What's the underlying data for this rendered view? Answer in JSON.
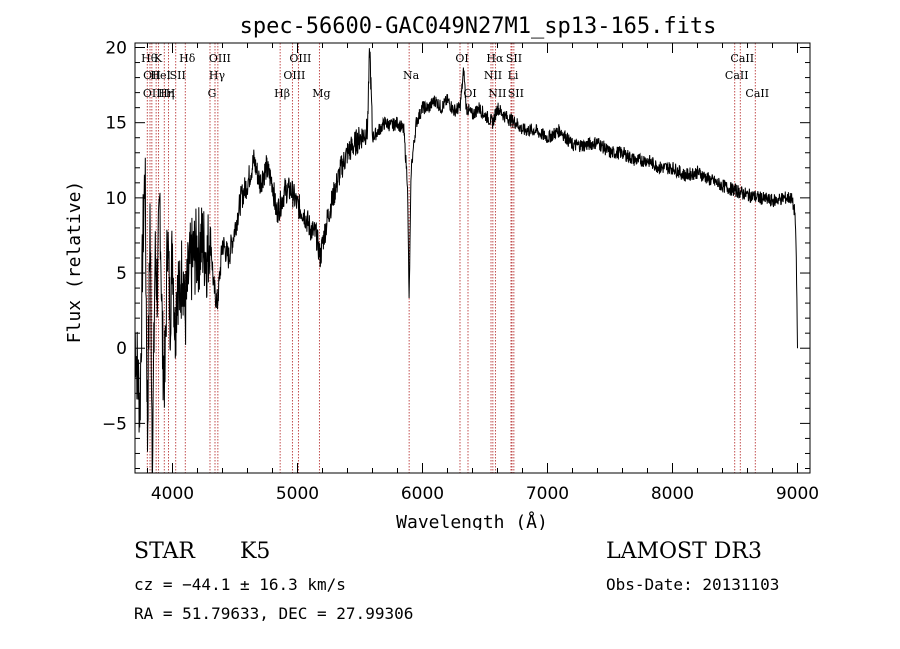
{
  "chart_data": {
    "type": "line",
    "title": "spec-56600-GAC049N27M1_sp13-165.fits",
    "xlabel": "Wavelength (Å)",
    "ylabel": "Flux (relative)",
    "xlim": [
      3700,
      9100
    ],
    "ylim": [
      -8.3,
      20.3
    ],
    "x_ticks": [
      4000,
      5000,
      6000,
      7000,
      8000,
      9000
    ],
    "x_tick_labels": [
      "4000",
      "5000",
      "6000",
      "7000",
      "8000",
      "9000"
    ],
    "y_ticks": [
      -5,
      0,
      5,
      10,
      15,
      20
    ],
    "y_tick_labels": [
      "−5",
      "0",
      "5",
      "10",
      "15",
      "20"
    ],
    "grid": false,
    "line_color": "#000000",
    "marker_color": "#b22222",
    "spectrum_points": [
      [
        3700,
        1
      ],
      [
        3740,
        -4
      ],
      [
        3760,
        6
      ],
      [
        3780,
        12
      ],
      [
        3800,
        -6
      ],
      [
        3820,
        9
      ],
      [
        3840,
        -8
      ],
      [
        3860,
        6
      ],
      [
        3880,
        4
      ],
      [
        3900,
        10
      ],
      [
        3920,
        0
      ],
      [
        3940,
        -2
      ],
      [
        3960,
        8
      ],
      [
        3980,
        2
      ],
      [
        4000,
        7
      ],
      [
        4020,
        1
      ],
      [
        4040,
        5
      ],
      [
        4060,
        3
      ],
      [
        4080,
        6
      ],
      [
        4100,
        2
      ],
      [
        4130,
        5
      ],
      [
        4160,
        6
      ],
      [
        4200,
        6.5
      ],
      [
        4240,
        7
      ],
      [
        4280,
        6
      ],
      [
        4300,
        8
      ],
      [
        4330,
        4
      ],
      [
        4360,
        3
      ],
      [
        4400,
        7
      ],
      [
        4450,
        6
      ],
      [
        4500,
        8
      ],
      [
        4550,
        10
      ],
      [
        4600,
        11
      ],
      [
        4650,
        12.5
      ],
      [
        4700,
        11
      ],
      [
        4750,
        12
      ],
      [
        4800,
        11
      ],
      [
        4830,
        9
      ],
      [
        4861,
        9.5
      ],
      [
        4900,
        10.5
      ],
      [
        4950,
        10.5
      ],
      [
        5000,
        9.5
      ],
      [
        5050,
        9
      ],
      [
        5100,
        8
      ],
      [
        5150,
        7.5
      ],
      [
        5183,
        6
      ],
      [
        5200,
        7
      ],
      [
        5250,
        9
      ],
      [
        5300,
        10.5
      ],
      [
        5350,
        12
      ],
      [
        5400,
        13
      ],
      [
        5450,
        13.5
      ],
      [
        5500,
        14
      ],
      [
        5560,
        14.5
      ],
      [
        5578,
        20
      ],
      [
        5600,
        14
      ],
      [
        5650,
        14.5
      ],
      [
        5700,
        15
      ],
      [
        5750,
        14.8
      ],
      [
        5800,
        15
      ],
      [
        5850,
        14.5
      ],
      [
        5880,
        11
      ],
      [
        5893,
        3
      ],
      [
        5910,
        12
      ],
      [
        5950,
        15
      ],
      [
        6000,
        16
      ],
      [
        6050,
        16
      ],
      [
        6100,
        16.5
      ],
      [
        6150,
        16
      ],
      [
        6200,
        16.5
      ],
      [
        6250,
        15.8
      ],
      [
        6300,
        16
      ],
      [
        6330,
        18.5
      ],
      [
        6350,
        16
      ],
      [
        6400,
        15.5
      ],
      [
        6450,
        16
      ],
      [
        6500,
        15.5
      ],
      [
        6563,
        15
      ],
      [
        6600,
        16
      ],
      [
        6650,
        15.5
      ],
      [
        6700,
        15.2
      ],
      [
        6750,
        15
      ],
      [
        6800,
        14.5
      ],
      [
        6900,
        14.5
      ],
      [
        7000,
        14
      ],
      [
        7100,
        14.5
      ],
      [
        7200,
        13.5
      ],
      [
        7300,
        13.5
      ],
      [
        7400,
        13.7
      ],
      [
        7500,
        13
      ],
      [
        7600,
        13
      ],
      [
        7700,
        12.5
      ],
      [
        7800,
        12.5
      ],
      [
        7900,
        12
      ],
      [
        8000,
        12
      ],
      [
        8100,
        11.5
      ],
      [
        8200,
        11.7
      ],
      [
        8300,
        11.2
      ],
      [
        8400,
        10.8
      ],
      [
        8500,
        10.5
      ],
      [
        8600,
        10.2
      ],
      [
        8700,
        10
      ],
      [
        8800,
        9.8
      ],
      [
        8900,
        10
      ],
      [
        8950,
        10
      ],
      [
        8980,
        9
      ],
      [
        8990,
        6
      ],
      [
        9000,
        0
      ]
    ],
    "line_markers": [
      {
        "x": 3798,
        "label": "Hθ",
        "row": 0
      },
      {
        "x": 3820,
        "label": "OII",
        "row": 1
      },
      {
        "x": 3835,
        "label": "OIII",
        "row": 2
      },
      {
        "x": 3869,
        "label": "K",
        "row": 0
      },
      {
        "x": 3889,
        "label": "HeI",
        "row": 1
      },
      {
        "x": 3934,
        "label": "Hη",
        "row": 2
      },
      {
        "x": 3968,
        "label": "H",
        "row": 2
      },
      {
        "x": 4026,
        "label": "SII",
        "row": 1
      },
      {
        "x": 4102,
        "label": "Hδ",
        "row": 0
      },
      {
        "x": 4300,
        "label": "G",
        "row": 2
      },
      {
        "x": 4340,
        "label": "Hγ",
        "row": 1
      },
      {
        "x": 4363,
        "label": "OIII",
        "row": 0
      },
      {
        "x": 4861,
        "label": "Hβ",
        "row": 2
      },
      {
        "x": 4959,
        "label": "OIII",
        "row": 1
      },
      {
        "x": 5007,
        "label": "OIII",
        "row": 0
      },
      {
        "x": 5175,
        "label": "Mg",
        "row": 2
      },
      {
        "x": 5893,
        "label": "Na",
        "row": 1
      },
      {
        "x": 6300,
        "label": "OI",
        "row": 0
      },
      {
        "x": 6364,
        "label": "OI",
        "row": 2
      },
      {
        "x": 6548,
        "label": "NII",
        "row": 1
      },
      {
        "x": 6563,
        "label": "Hα",
        "row": 0
      },
      {
        "x": 6583,
        "label": "NII",
        "row": 2
      },
      {
        "x": 6708,
        "label": "Li",
        "row": 1
      },
      {
        "x": 6716,
        "label": "SII",
        "row": 0
      },
      {
        "x": 6731,
        "label": "SII",
        "row": 2
      },
      {
        "x": 8498,
        "label": "CaII",
        "row": 1
      },
      {
        "x": 8542,
        "label": "CaII",
        "row": 0
      },
      {
        "x": 8662,
        "label": "CaII",
        "row": 2
      }
    ]
  },
  "info": {
    "object_class": "STAR",
    "subclass": "K5",
    "survey": "LAMOST DR3",
    "cz": "cz = −44.1 ± 16.3 km/s",
    "obs_date": "Obs-Date: 20131103",
    "coords": "RA =  51.79633, DEC =  27.99306"
  }
}
